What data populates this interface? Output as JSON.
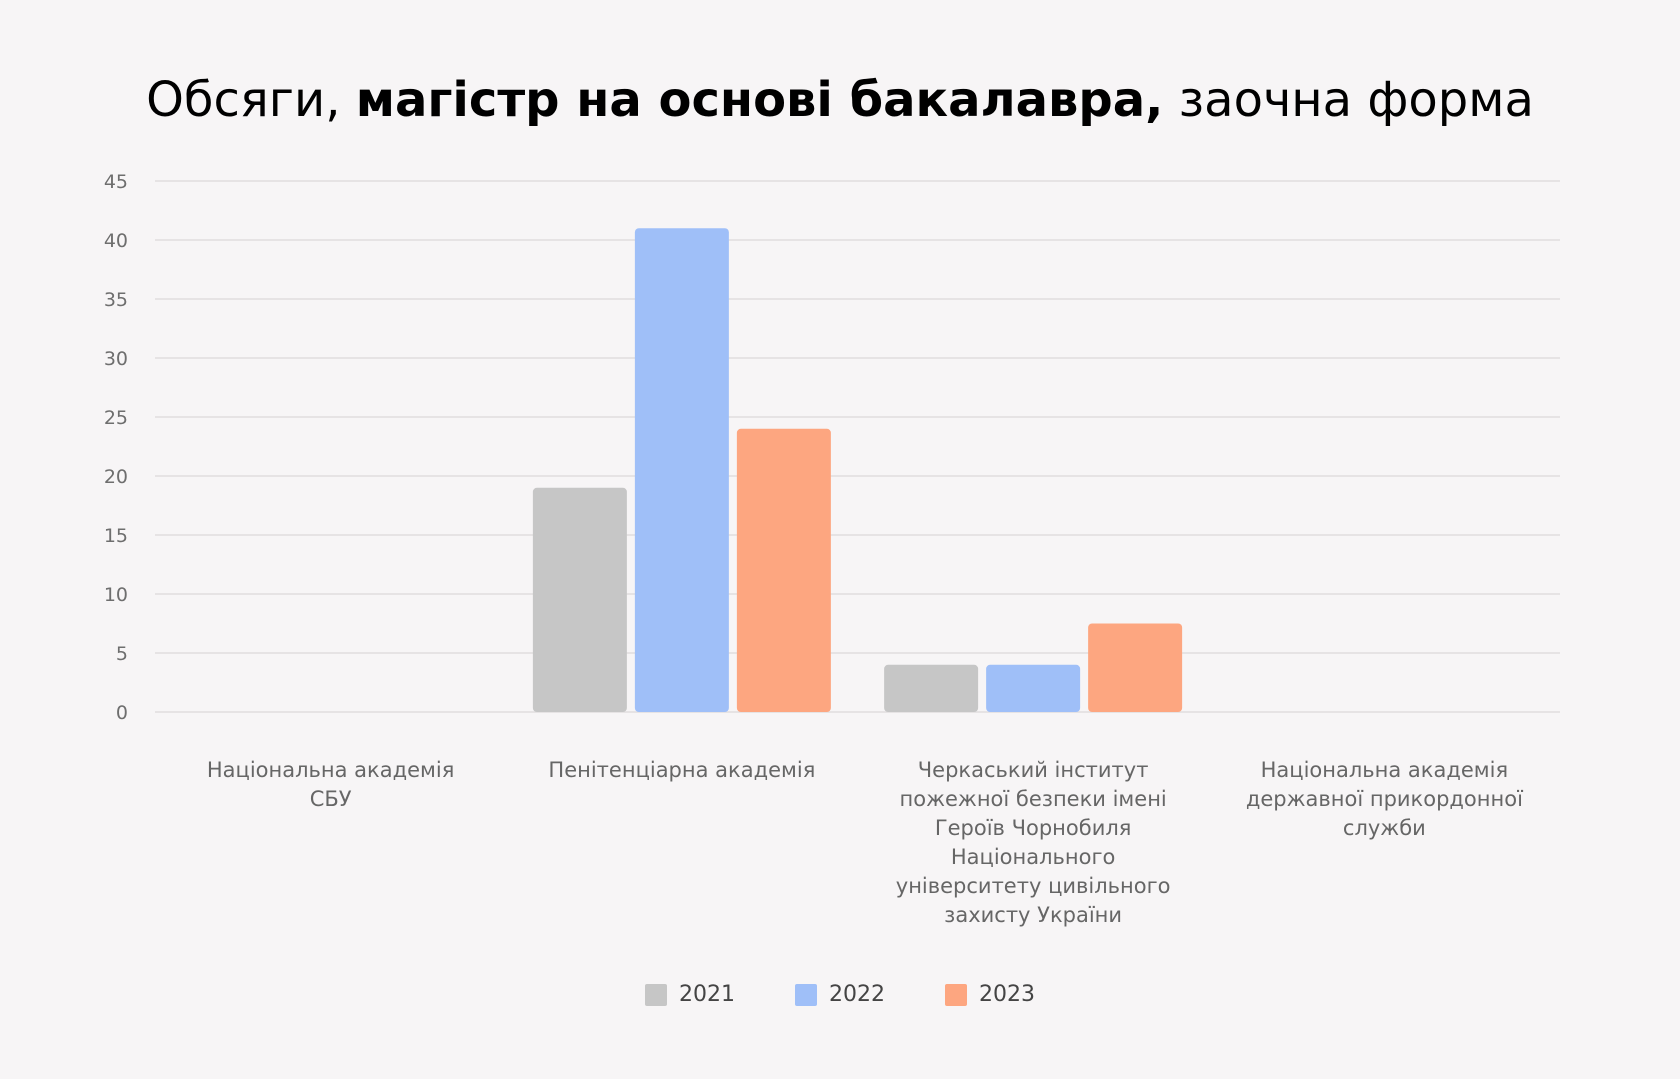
{
  "title": {
    "prefix": "Обсяги, ",
    "bold": "магістр на основі бакалавра,",
    "suffix": " заочна форма"
  },
  "chart_data": {
    "type": "bar",
    "categories": [
      [
        "Національна академія",
        "СБУ"
      ],
      [
        "Пенітенціарна академія"
      ],
      [
        "Черкаський інститут",
        "пожежної безпеки імені",
        "Героїв Чорнобиля",
        "Національного",
        "університету цивільного",
        "захисту України"
      ],
      [
        "Національна академія",
        "державної прикордонної",
        "служби"
      ]
    ],
    "series": [
      {
        "name": "2021",
        "color": "#c6c6c6",
        "values": [
          0,
          19,
          4,
          0
        ]
      },
      {
        "name": "2022",
        "color": "#9fbff8",
        "values": [
          0,
          41,
          4,
          0
        ]
      },
      {
        "name": "2023",
        "color": "#fda680",
        "values": [
          0,
          24,
          7.5,
          0
        ]
      }
    ],
    "ylim": [
      0,
      45
    ],
    "yticks": [
      0,
      5,
      10,
      15,
      20,
      25,
      30,
      35,
      40,
      45
    ],
    "grid": true,
    "legend_position": "bottom-center"
  }
}
